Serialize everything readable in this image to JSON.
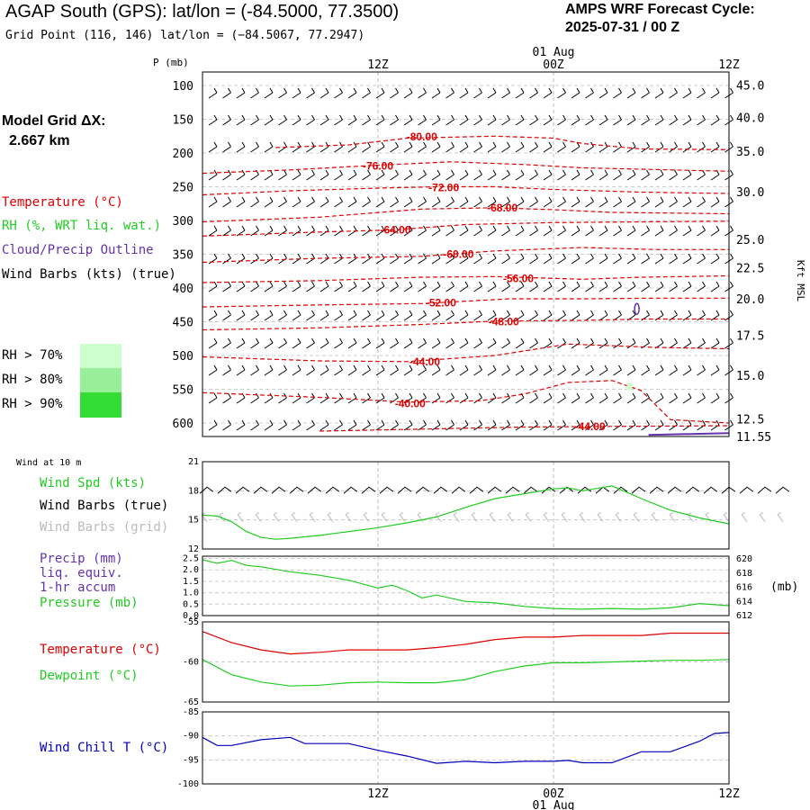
{
  "header": {
    "title": "AGAP South (GPS):  lat/lon = (-84.5000, 77.3500)",
    "subtitle": "Grid Point (116, 146) lat/lon = (−84.5067, 77.2947)",
    "cycle_label": "AMPS WRF Forecast Cycle:",
    "cycle_value": "2025-07-31 / 00  Z",
    "grid_label": "Model Grid ΔX:",
    "grid_value": "2.667 km"
  },
  "legend": {
    "temperature": "Temperature (°C)",
    "rh": "RH (%, WRT liq. wat.)",
    "cloud": "Cloud/Precip Outline",
    "wind": "Wind Barbs (kts) (true)",
    "rh_levels": [
      {
        "label": "RH > 70%",
        "color": "#ccffcc"
      },
      {
        "label": "RH > 80%",
        "color": "#99ee99"
      },
      {
        "label": "RH > 90%",
        "color": "#33dd33"
      }
    ]
  },
  "colors": {
    "temperature": "#dd0000",
    "rh": "#22cc22",
    "cloud": "#6633aa",
    "wind": "#000000",
    "wind_grid": "#bbbbbb",
    "windchill": "#0000bb",
    "grid": "#bbbbbb"
  },
  "time_axis": {
    "ticks": [
      {
        "label": "12Z",
        "hour": 12
      },
      {
        "label": "00Z",
        "hour": 24
      },
      {
        "label": "12Z",
        "hour": 36
      }
    ],
    "date_label": "01 Aug",
    "date_hour": 24,
    "range": [
      0,
      36
    ]
  },
  "chart_data": [
    {
      "type": "line",
      "name": "vertical-cross-section",
      "ylabel": "P (mb)",
      "y_ticks": [
        100,
        150,
        200,
        250,
        300,
        350,
        400,
        450,
        500,
        550,
        600
      ],
      "right_axis_label": "Kft MSL",
      "right_ticks": [
        {
          "label": "45.0",
          "p": 99
        },
        {
          "label": "40.0",
          "p": 147
        },
        {
          "label": "35.0",
          "p": 197
        },
        {
          "label": "30.0",
          "p": 257
        },
        {
          "label": "25.0",
          "p": 328
        },
        {
          "label": "22.5",
          "p": 370
        },
        {
          "label": "20.0",
          "p": 416
        },
        {
          "label": "17.5",
          "p": 470
        },
        {
          "label": "15.0",
          "p": 529
        },
        {
          "label": "12.5",
          "p": 594
        },
        {
          "label": "11.55",
          "p": 620
        }
      ],
      "ylim": [
        80,
        620
      ],
      "isotherms": [
        {
          "label": "-80.00",
          "label_hour": 15,
          "label_p": 176,
          "points": [
            [
              5,
              192
            ],
            [
              10,
              188
            ],
            [
              14,
              178
            ],
            [
              20,
              175
            ],
            [
              24,
              178
            ],
            [
              26,
              186
            ],
            [
              30,
              194
            ],
            [
              36,
              195
            ]
          ]
        },
        {
          "label": "-76.00",
          "label_hour": 12,
          "label_p": 219,
          "points": [
            [
              0,
              230
            ],
            [
              6,
              225
            ],
            [
              12,
              218
            ],
            [
              17,
              213
            ],
            [
              22,
              217
            ],
            [
              26,
              222
            ],
            [
              30,
              224
            ],
            [
              36,
              227
            ]
          ]
        },
        {
          "label": "-72.00",
          "label_hour": 16.5,
          "label_p": 251,
          "points": [
            [
              0,
              262
            ],
            [
              6,
              256
            ],
            [
              12,
              252
            ],
            [
              16,
              250
            ],
            [
              20,
              250
            ],
            [
              24,
              254
            ],
            [
              30,
              258
            ],
            [
              36,
              260
            ]
          ]
        },
        {
          "label": "-68.00",
          "label_hour": 20.5,
          "label_p": 281,
          "points": [
            [
              0,
              302
            ],
            [
              8,
              295
            ],
            [
              15,
              283
            ],
            [
              20,
              281
            ],
            [
              24,
              284
            ],
            [
              28,
              288
            ],
            [
              36,
              290
            ]
          ]
        },
        {
          "label": "-64.00",
          "label_hour": 13.2,
          "label_p": 314,
          "points": [
            [
              0,
              323
            ],
            [
              8,
              317
            ],
            [
              13,
              314
            ],
            [
              18,
              306
            ],
            [
              24,
              303
            ],
            [
              30,
              302
            ],
            [
              36,
              301
            ]
          ]
        },
        {
          "label": "-60.00",
          "label_hour": 17.5,
          "label_p": 350,
          "points": [
            [
              0,
              362
            ],
            [
              8,
              356
            ],
            [
              15,
              353
            ],
            [
              20,
              345
            ],
            [
              26,
              340
            ],
            [
              31,
              343
            ],
            [
              36,
              343
            ]
          ]
        },
        {
          "label": "-56.00",
          "label_hour": 21.6,
          "label_p": 386,
          "points": [
            [
              0,
              392
            ],
            [
              8,
              389
            ],
            [
              15,
              384
            ],
            [
              20,
              383
            ],
            [
              26,
              387
            ],
            [
              30,
              384
            ],
            [
              36,
              382
            ]
          ]
        },
        {
          "label": "-52.00",
          "label_hour": 16.3,
          "label_p": 422,
          "points": [
            [
              0,
              428
            ],
            [
              8,
              425
            ],
            [
              15,
              423
            ],
            [
              21,
              416
            ],
            [
              26,
              416
            ],
            [
              31,
              415
            ],
            [
              36,
              415
            ]
          ]
        },
        {
          "label": "-48.00",
          "label_hour": 20.6,
          "label_p": 450,
          "points": [
            [
              0,
              462
            ],
            [
              8,
              459
            ],
            [
              15,
              454
            ],
            [
              20,
              449
            ],
            [
              26,
              448
            ],
            [
              30,
              446
            ],
            [
              36,
              446
            ]
          ]
        },
        {
          "label": "-44.00",
          "label_hour": 15.2,
          "label_p": 509,
          "points": [
            [
              0,
              502
            ],
            [
              8,
              508
            ],
            [
              14,
              509
            ],
            [
              20,
              500
            ],
            [
              25,
              483
            ],
            [
              31,
              488
            ],
            [
              36,
              490
            ]
          ]
        },
        {
          "label": "-40.00",
          "label_hour": 14.2,
          "label_p": 571,
          "points": [
            [
              0,
              555
            ],
            [
              8,
              562
            ],
            [
              14,
              569
            ],
            [
              19,
              567
            ],
            [
              22,
              557
            ],
            [
              25,
              540
            ],
            [
              28,
              537
            ],
            [
              30,
              552
            ],
            [
              32,
              595
            ],
            [
              36,
              600
            ]
          ]
        },
        {
          "label": "-44.00",
          "label_hour": 26.5,
          "label_p": 605,
          "points": [
            [
              8,
              612
            ],
            [
              15,
              609
            ],
            [
              22,
              606
            ],
            [
              28,
              605
            ],
            [
              36,
              604
            ]
          ]
        }
      ],
      "rh_marks": [
        {
          "hour": 29.2,
          "p": 546,
          "level": 0
        }
      ],
      "cloud_outline": [
        {
          "hour": 29.7,
          "p": 431
        },
        {
          "hour": 30.5,
          "p": 619
        }
      ]
    },
    {
      "type": "line",
      "name": "wind-10m",
      "title": "Wind at 10 m",
      "legend": [
        "Wind Spd (kts)",
        "Wind Barbs (true)",
        "Wind Barbs (grid)"
      ],
      "y_ticks": [
        12,
        15,
        18,
        21
      ],
      "ylim": [
        12,
        21
      ],
      "x": [
        0,
        1,
        2,
        3,
        4,
        5,
        6,
        8,
        10,
        12,
        14,
        16,
        18,
        20,
        22,
        24,
        25,
        26,
        28,
        30,
        32,
        34,
        36
      ],
      "series": [
        {
          "name": "Wind Spd (kts)",
          "values": [
            15.5,
            15.4,
            14.8,
            13.8,
            13.2,
            13.0,
            13.1,
            13.4,
            13.8,
            14.2,
            14.7,
            15.3,
            16.3,
            17.2,
            17.7,
            18.2,
            18.3,
            18.0,
            18.5,
            17.2,
            16.0,
            15.2,
            14.6
          ]
        }
      ]
    },
    {
      "type": "line",
      "name": "precip-pressure",
      "legend": [
        "Precip (mm)",
        "liq. equiv.",
        "1-hr accum",
        "Pressure (mb)"
      ],
      "y_ticks": [
        0.0,
        0.5,
        1.0,
        1.5,
        2.0,
        2.5
      ],
      "ylim": [
        0,
        2.6
      ],
      "right_ticks": [
        612,
        614,
        616,
        618,
        620
      ],
      "right_ylabel": "(mb)",
      "right_ylim": [
        612,
        620.4
      ],
      "x": [
        0,
        1,
        2,
        3,
        4,
        6,
        8,
        10,
        12,
        13,
        14,
        15,
        16,
        18,
        20,
        22,
        24,
        26,
        28,
        30,
        32,
        34,
        36
      ],
      "series": [
        {
          "name": "Pressure (mb)",
          "values": [
            619.9,
            619.4,
            619.8,
            619.1,
            618.9,
            618.2,
            617.7,
            617.0,
            615.9,
            616.3,
            615.5,
            614.5,
            614.9,
            614.0,
            613.8,
            613.3,
            613.0,
            612.9,
            613.0,
            612.9,
            613.1,
            613.7,
            613.4
          ]
        }
      ]
    },
    {
      "type": "line",
      "name": "temperature-dewpoint",
      "legend": [
        "Temperature (°C)",
        "Dewpoint (°C)"
      ],
      "y_ticks": [
        -55,
        -60,
        -65
      ],
      "ylim": [
        -65,
        -55
      ],
      "x": [
        0,
        2,
        4,
        6,
        8,
        10,
        12,
        14,
        16,
        18,
        20,
        22,
        24,
        26,
        28,
        30,
        32,
        34,
        36
      ],
      "series": [
        {
          "name": "Temperature (°C)",
          "values": [
            -56.2,
            -57.6,
            -58.5,
            -59.0,
            -58.8,
            -58.5,
            -58.5,
            -58.5,
            -58.2,
            -57.8,
            -57.2,
            -56.9,
            -56.9,
            -56.7,
            -56.7,
            -56.7,
            -56.4,
            -56.4,
            -56.4
          ]
        },
        {
          "name": "Dewpoint (°C)",
          "values": [
            -59.7,
            -61.6,
            -62.5,
            -63.0,
            -62.9,
            -62.6,
            -62.5,
            -62.6,
            -62.6,
            -62.2,
            -61.2,
            -60.5,
            -60.1,
            -60.1,
            -60.0,
            -59.9,
            -59.8,
            -59.8,
            -59.7
          ]
        }
      ]
    },
    {
      "type": "line",
      "name": "wind-chill",
      "legend": [
        "Wind Chill T (°C)"
      ],
      "y_ticks": [
        -85,
        -90,
        -95,
        -100
      ],
      "ylim": [
        -100,
        -85
      ],
      "x": [
        0,
        1,
        2,
        4,
        6,
        7,
        8,
        10,
        12,
        14,
        16,
        18,
        20,
        22,
        24,
        25,
        26,
        28,
        30,
        32,
        34,
        35,
        36
      ],
      "series": [
        {
          "name": "Wind Chill T (°C)",
          "values": [
            -90.3,
            -92.0,
            -92.0,
            -90.8,
            -90.3,
            -91.6,
            -91.6,
            -91.6,
            -93.0,
            -94.2,
            -95.7,
            -95.3,
            -95.6,
            -95.3,
            -95.3,
            -95.1,
            -95.6,
            -95.6,
            -93.3,
            -93.3,
            -91.1,
            -89.5,
            -89.3
          ]
        }
      ]
    }
  ]
}
